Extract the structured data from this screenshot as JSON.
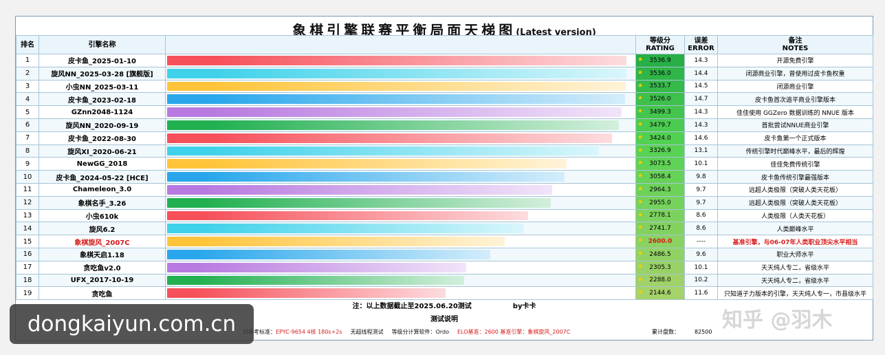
{
  "title": "象棋引擎联赛平衡局面天梯图",
  "subtitle": "(Latest version)",
  "headers": {
    "rank": "排名",
    "name": "引擎名称",
    "rating_cn": "等级分",
    "rating_en": "RATING",
    "error_cn": "误差",
    "error_en": "ERROR",
    "notes_cn": "备注",
    "notes_en": "NOTES"
  },
  "chart_data": {
    "type": "bar",
    "orientation": "horizontal",
    "categories": [
      "皮卡鱼_2025-01-10",
      "旋风NN_2025-03-28 [旗舰版]",
      "小虫NN_2025-03-11",
      "皮卡鱼_2023-02-18",
      "GZnn2048-1124",
      "旋风NN_2020-09-19",
      "皮卡鱼_2022-08-30",
      "旋风XI_2020-06-21",
      "NewGG_2018",
      "皮卡鱼_2024-05-22 [HCE]",
      "Chameleon_3.0",
      "象棋名手_3.26",
      "小虫610k",
      "旋风6.2",
      "象棋旋风_2007C",
      "象棋天启1.18",
      "贪吃鱼v2.0",
      "UFX_2017-10-19",
      "贪吃鱼"
    ],
    "values": [
      3536.9,
      3536.0,
      3533.7,
      3526.0,
      3499.3,
      3479.7,
      3424.0,
      3326.9,
      3073.5,
      3058.4,
      2964.3,
      2955.0,
      2778.1,
      2741.7,
      2600.0,
      2486.5,
      2305.3,
      2288.0,
      2144.6
    ],
    "value_labels": [
      "3536.9",
      "3536.0",
      "3533.7",
      "3526.0",
      "3499.3",
      "3479.7",
      "3424.0",
      "3326.9",
      "3073.5",
      "3058.4",
      "2964.3",
      "2955.0",
      "2778.1",
      "2741.7",
      "2600.0",
      "2486.5",
      "2305.3",
      "2288.0",
      "2144.6"
    ],
    "errors": [
      "14.3",
      "14.4",
      "14.5",
      "14.7",
      "14.3",
      "14.3",
      "14.6",
      "13.1",
      "10.1",
      "9.8",
      "9.7",
      "9.7",
      "8.6",
      "8.6",
      "----",
      "9.6",
      "10.1",
      "10.2",
      "11.6"
    ],
    "ranks": [
      "1",
      "2",
      "3",
      "4",
      "5",
      "6",
      "7",
      "8",
      "9",
      "10",
      "11",
      "12",
      "13",
      "14",
      "15",
      "16",
      "17",
      "18",
      "19"
    ],
    "notes": [
      "开源免费引擎",
      "闭源商业引擎，曾使用过皮卡鱼权重",
      "闭源商业引擎",
      "皮卡鱼首次追平商业引擎版本",
      "佳佳使用 GGZero 数据训练的 NNUE 版本",
      "首批尝试NNUE商业引擎",
      "皮卡鱼第一个正式版本",
      "传统引擎时代巅峰水平，最后的辉煌",
      "佳佳免费传统引擎",
      "皮卡鱼传统引擎最强版本",
      "远超人类极限（突破人类天花板）",
      "远超人类极限（突破人类天花板）",
      "人类极限（人类天花板）",
      "人类巅峰水平",
      "基准引擎，与06-07年人类职业顶尖水平相当",
      "职业大师水平",
      "天天纯人专二，省级水平",
      "天天纯人专二，省级水平",
      "只知道子力版本的引擎，天天纯人专一，市县级水平"
    ],
    "highlight_index": 14,
    "bar_colors": [
      "#f6505a",
      "#3fd2ea",
      "#ffc43a",
      "#2aa7ec",
      "#b87ae0",
      "#22b050"
    ],
    "highlight_color": "#d61a1a",
    "xlim": [
      0,
      3600
    ]
  },
  "footnote": "注：以上数据截止至2025.06.20测试",
  "author": "by卡卡",
  "test_title": "测试说明",
  "test_line": {
    "label_standard": "对参考标准：",
    "standard": "EPYC-9654 4核 180s+2s",
    "no_threads": "无超线程测试",
    "software_label": "等级分计算软件：",
    "software": "Ordo",
    "elo": "ELO基准：2600 基准引擎：象棋旋风_2007C"
  },
  "total_label": "累计盘数：",
  "total_games": "82500",
  "watermark": "dongkaiyun.com.cn",
  "brand_mark": "知乎 @羽木"
}
